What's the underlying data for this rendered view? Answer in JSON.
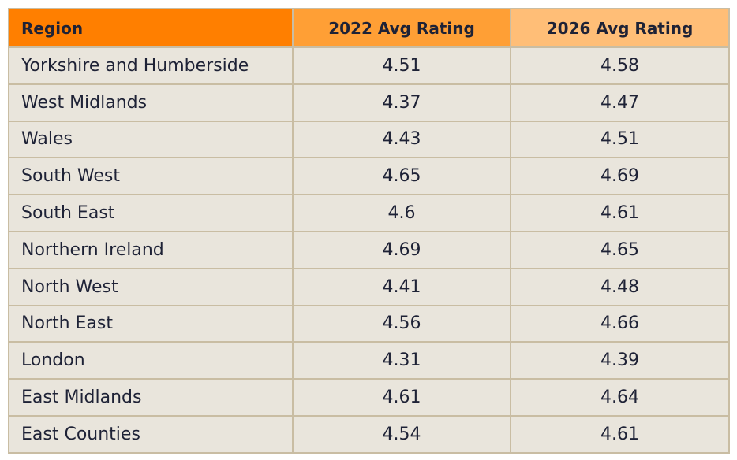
{
  "table": {
    "headers": {
      "region": "Region",
      "avg_2022": "2022 Avg Rating",
      "avg_2026": "2026 Avg Rating"
    },
    "rows": [
      {
        "region": "Yorkshire and Humberside",
        "avg_2022": "4.51",
        "avg_2026": "4.58"
      },
      {
        "region": "West Midlands",
        "avg_2022": "4.37",
        "avg_2026": "4.47"
      },
      {
        "region": "Wales",
        "avg_2022": "4.43",
        "avg_2026": "4.51"
      },
      {
        "region": "South West",
        "avg_2022": "4.65",
        "avg_2026": "4.69"
      },
      {
        "region": "South East",
        "avg_2022": "4.6",
        "avg_2026": "4.61"
      },
      {
        "region": "Northern Ireland",
        "avg_2022": "4.69",
        "avg_2026": "4.65"
      },
      {
        "region": "North West",
        "avg_2022": "4.41",
        "avg_2026": "4.48"
      },
      {
        "region": "North East",
        "avg_2022": "4.56",
        "avg_2026": "4.66"
      },
      {
        "region": "London",
        "avg_2022": "4.31",
        "avg_2026": "4.39"
      },
      {
        "region": "East Midlands",
        "avg_2022": "4.61",
        "avg_2026": "4.64"
      },
      {
        "region": "East Counties",
        "avg_2022": "4.54",
        "avg_2026": "4.61"
      }
    ]
  }
}
